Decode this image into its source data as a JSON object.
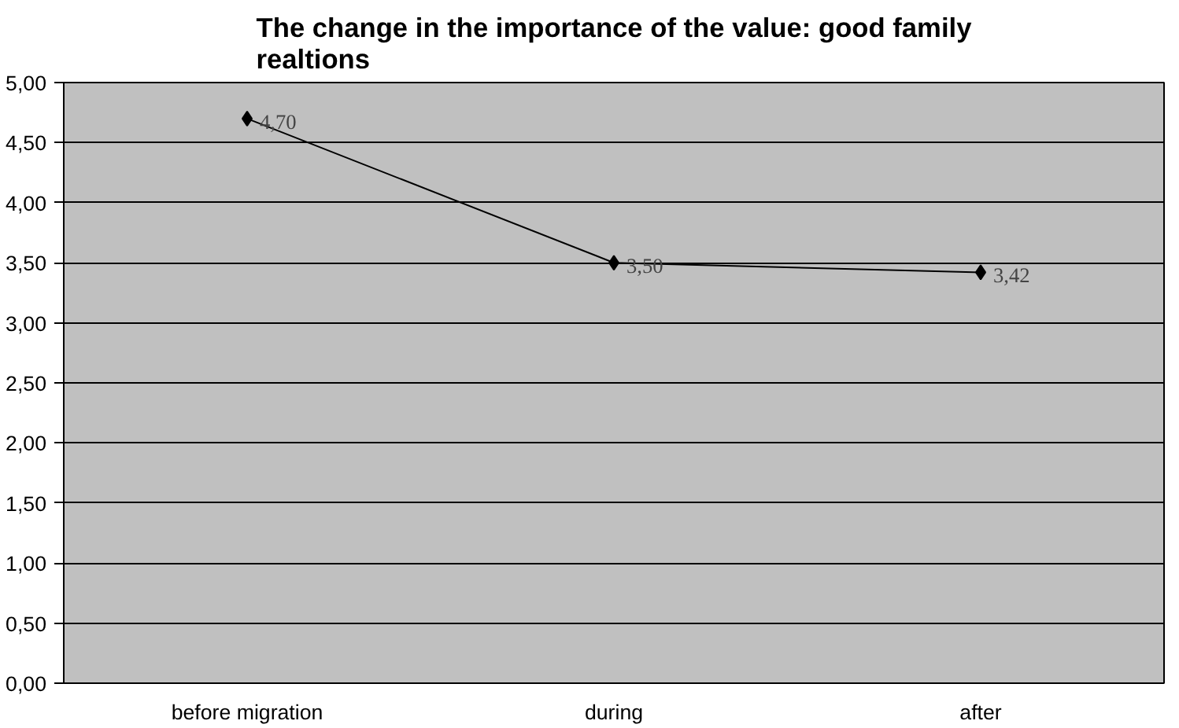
{
  "chart_data": {
    "type": "line",
    "title": "The change in the importance of the value: good family realtions",
    "categories": [
      "before migration",
      "during",
      "after"
    ],
    "series": [
      {
        "color": "#000000",
        "values": [
          4.7,
          3.5,
          3.42
        ],
        "value_labels": [
          "4,70",
          "3,50",
          "3,42"
        ]
      }
    ],
    "ylim": [
      0,
      5
    ],
    "yticks": [
      {
        "value": 0,
        "label": "0,00"
      },
      {
        "value": 0.5,
        "label": "0,50"
      },
      {
        "value": 1,
        "label": "1,00"
      },
      {
        "value": 1.5,
        "label": "1,50"
      },
      {
        "value": 2,
        "label": "2,00"
      },
      {
        "value": 2.5,
        "label": "2,50"
      },
      {
        "value": 3,
        "label": "3,00"
      },
      {
        "value": 3.5,
        "label": "3,50"
      },
      {
        "value": 4,
        "label": "4,00"
      },
      {
        "value": 4.5,
        "label": "4,50"
      },
      {
        "value": 5,
        "label": "5,00"
      }
    ],
    "grid": "y",
    "marker": "diamond",
    "line_style": "solid"
  }
}
